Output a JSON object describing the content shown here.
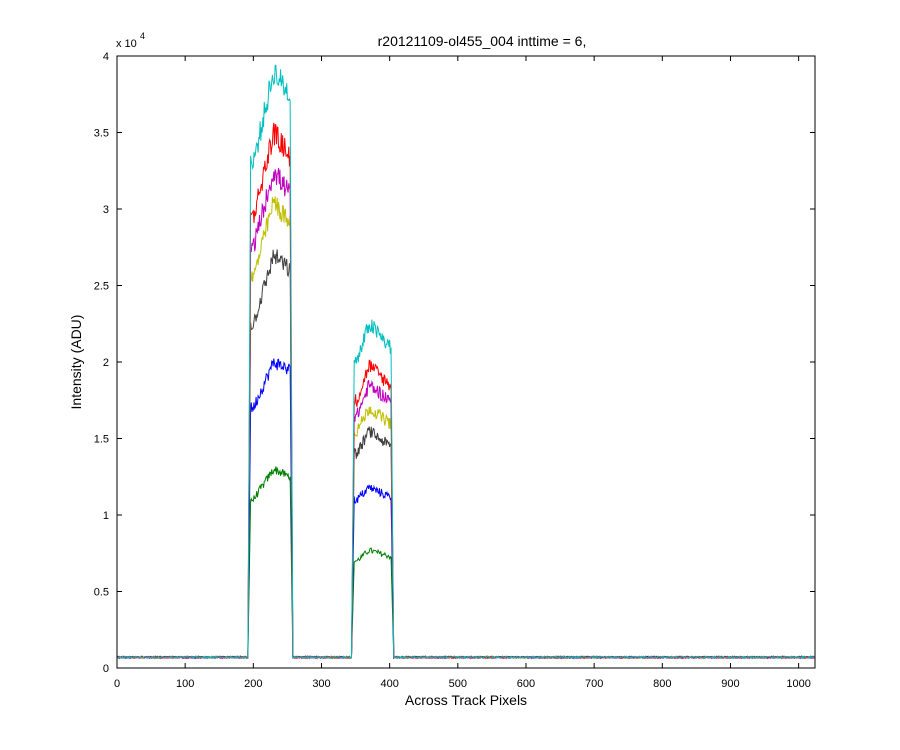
{
  "chart_data": {
    "type": "line",
    "title": "r20121109-ol455_004 inttime = 6,",
    "xlabel": "Across Track Pixels",
    "ylabel": "Intensity (ADU)",
    "xlim": [
      0,
      1024
    ],
    "ylim": [
      0,
      40000
    ],
    "x_ticks": [
      "0",
      "100",
      "200",
      "300",
      "400",
      "500",
      "600",
      "700",
      "800",
      "900",
      "1000"
    ],
    "y_ticks": [
      "0",
      "0.5",
      "1",
      "1.5",
      "2",
      "2.5",
      "3",
      "3.5",
      "4"
    ],
    "y_exponent_base": "x 10",
    "y_exponent_power": "4",
    "grid": false,
    "legend": "none",
    "baseline": 700,
    "segments": [
      {
        "x_start": 193,
        "x_end": 257
      },
      {
        "x_start": 345,
        "x_end": 405
      }
    ],
    "series": [
      {
        "color": "#008000",
        "values": [
          {
            "x": 200,
            "y": 11000
          },
          {
            "x": 230,
            "y": 13000
          },
          {
            "x": 253,
            "y": 12500
          },
          {
            "x": 352,
            "y": 7000
          },
          {
            "x": 370,
            "y": 7700
          },
          {
            "x": 400,
            "y": 7300
          }
        ]
      },
      {
        "color": "#0000ff",
        "values": [
          {
            "x": 200,
            "y": 17000
          },
          {
            "x": 230,
            "y": 20000
          },
          {
            "x": 253,
            "y": 19500
          },
          {
            "x": 352,
            "y": 11000
          },
          {
            "x": 370,
            "y": 11800
          },
          {
            "x": 400,
            "y": 11200
          }
        ]
      },
      {
        "color": "#404040",
        "values": [
          {
            "x": 200,
            "y": 22500
          },
          {
            "x": 230,
            "y": 27000
          },
          {
            "x": 253,
            "y": 26000
          },
          {
            "x": 352,
            "y": 14000
          },
          {
            "x": 370,
            "y": 15500
          },
          {
            "x": 400,
            "y": 14500
          }
        ]
      },
      {
        "color": "#bfbf00",
        "values": [
          {
            "x": 200,
            "y": 25500
          },
          {
            "x": 230,
            "y": 30500
          },
          {
            "x": 253,
            "y": 29000
          },
          {
            "x": 352,
            "y": 15500
          },
          {
            "x": 370,
            "y": 17000
          },
          {
            "x": 400,
            "y": 16000
          }
        ]
      },
      {
        "color": "#bf00bf",
        "values": [
          {
            "x": 200,
            "y": 27500
          },
          {
            "x": 230,
            "y": 32500
          },
          {
            "x": 253,
            "y": 31000
          },
          {
            "x": 352,
            "y": 16500
          },
          {
            "x": 370,
            "y": 18500
          },
          {
            "x": 400,
            "y": 17500
          }
        ]
      },
      {
        "color": "#ff0000",
        "values": [
          {
            "x": 200,
            "y": 29500
          },
          {
            "x": 230,
            "y": 35000
          },
          {
            "x": 253,
            "y": 33500
          },
          {
            "x": 352,
            "y": 17500
          },
          {
            "x": 370,
            "y": 19800
          },
          {
            "x": 400,
            "y": 18500
          }
        ]
      },
      {
        "color": "#00bfbf",
        "values": [
          {
            "x": 200,
            "y": 33000
          },
          {
            "x": 230,
            "y": 39000
          },
          {
            "x": 253,
            "y": 37500
          },
          {
            "x": 352,
            "y": 20000
          },
          {
            "x": 370,
            "y": 22500
          },
          {
            "x": 400,
            "y": 21000
          }
        ]
      }
    ]
  }
}
